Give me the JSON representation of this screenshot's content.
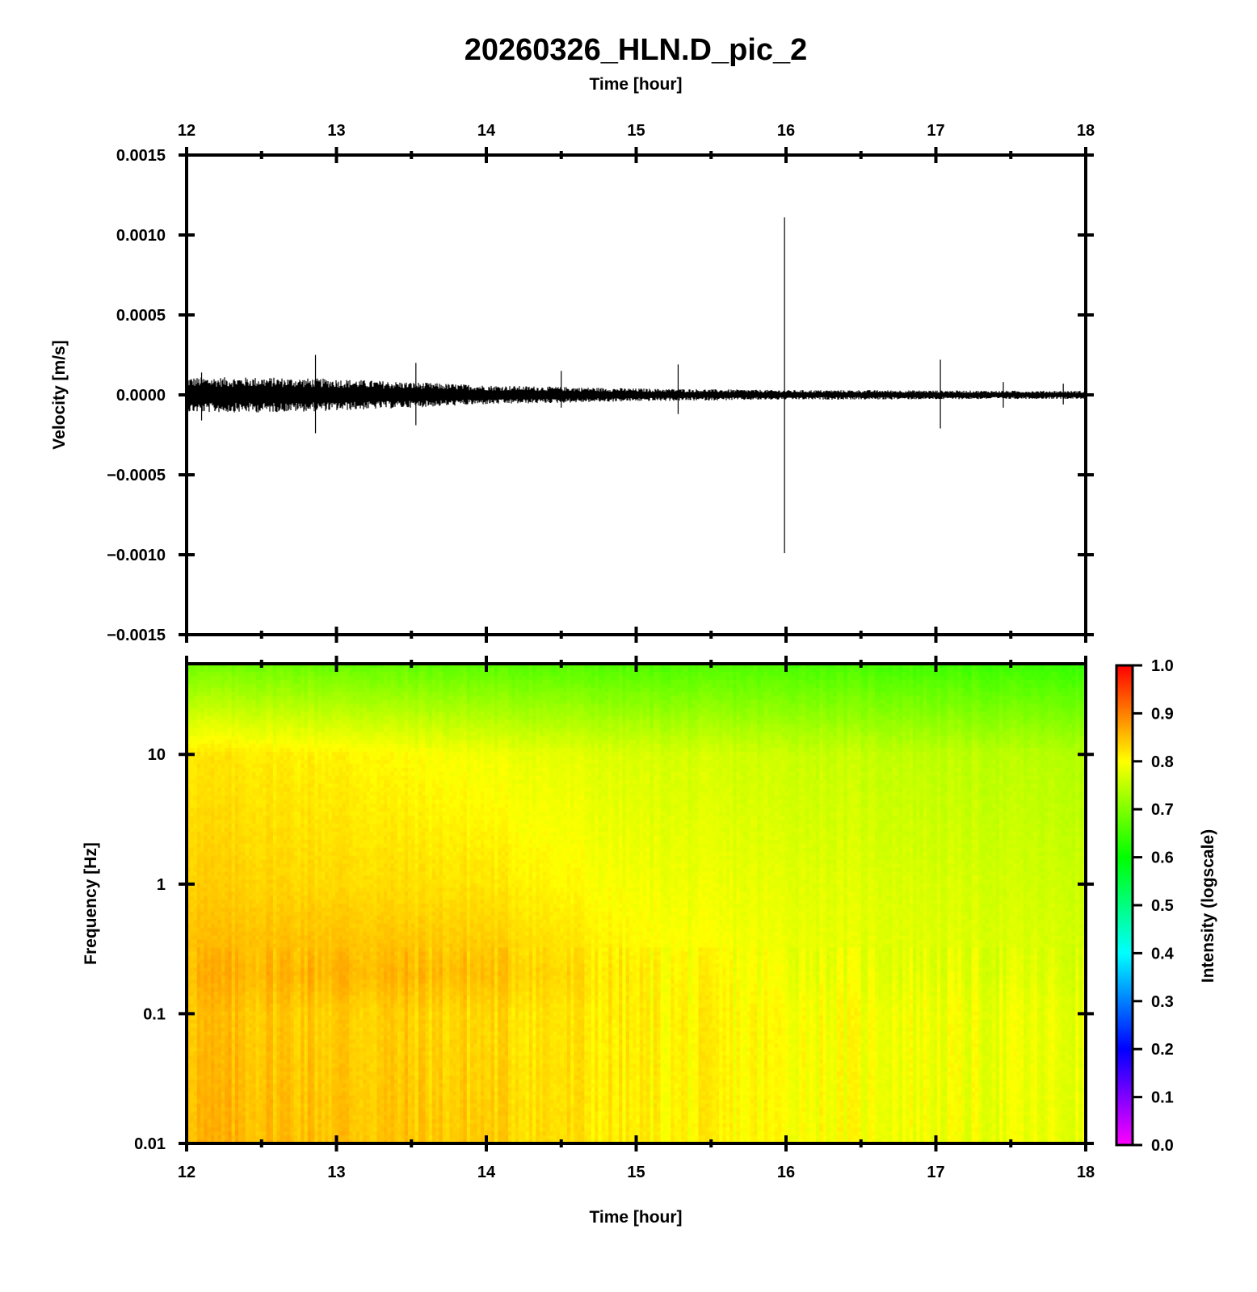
{
  "title": "20260326_HLN.D_pic_2",
  "chart_data": [
    {
      "type": "line",
      "title": "20260326_HLN.D_pic_2",
      "xlabel": "Time [hour]",
      "ylabel": "Velocity [m/s]",
      "xlim": [
        12,
        18
      ],
      "ylim": [
        -0.0015,
        0.0015
      ],
      "xticks": [
        "12",
        "13",
        "14",
        "15",
        "16",
        "17",
        "18"
      ],
      "yticks": [
        "0.0015",
        "0.0010",
        "0.0005",
        "0.0000",
        "−0.0005",
        "−0.0010",
        "−0.0015"
      ],
      "xtick_values": [
        12,
        13,
        14,
        15,
        16,
        17,
        18
      ],
      "ytick_values": [
        0.0015,
        0.001,
        0.0005,
        0,
        -0.0005,
        -0.001,
        -0.0015
      ],
      "grid": false,
      "line_color": "#000000",
      "noise_envelope": {
        "x": [
          12.0,
          12.5,
          13.0,
          13.5,
          14.0,
          14.5,
          15.0,
          15.5,
          16.0,
          16.5,
          17.0,
          17.5,
          18.0
        ],
        "amplitude": [
          0.00011,
          0.00011,
          0.0001,
          8e-05,
          6e-05,
          5e-05,
          4e-05,
          3.5e-05,
          3e-05,
          3e-05,
          2.8e-05,
          2.6e-05,
          2.5e-05
        ]
      },
      "spikes": [
        {
          "x": 12.1,
          "ymax": 0.00014,
          "ymin": -0.00016
        },
        {
          "x": 12.86,
          "ymax": 0.00025,
          "ymin": -0.00024
        },
        {
          "x": 13.53,
          "ymax": 0.0002,
          "ymin": -0.00019
        },
        {
          "x": 14.5,
          "ymax": 0.00015,
          "ymin": -8e-05
        },
        {
          "x": 15.28,
          "ymax": 0.00019,
          "ymin": -0.00012
        },
        {
          "x": 15.99,
          "ymax": 0.00111,
          "ymin": -0.00099
        },
        {
          "x": 17.03,
          "ymax": 0.00022,
          "ymin": -0.00021
        },
        {
          "x": 17.45,
          "ymax": 8e-05,
          "ymin": -8e-05
        },
        {
          "x": 17.85,
          "ymax": 7e-05,
          "ymin": -6e-05
        }
      ]
    },
    {
      "type": "heatmap",
      "xlabel": "Time [hour]",
      "ylabel": "Frequency [Hz]",
      "xlim": [
        12,
        18
      ],
      "ylim": [
        0.01,
        50
      ],
      "yscale": "log",
      "xticks": [
        "12",
        "13",
        "14",
        "15",
        "16",
        "17",
        "18"
      ],
      "yticks": [
        "10",
        "1",
        "0.1",
        "0.01"
      ],
      "xtick_values": [
        12,
        13,
        14,
        15,
        16,
        17,
        18
      ],
      "ytick_values": [
        10,
        1,
        0.1,
        0.01
      ],
      "colorbar": {
        "label": "Intensity (logscale)",
        "range": [
          0,
          1
        ],
        "ticks": [
          "1.0",
          "0.9",
          "0.8",
          "0.7",
          "0.6",
          "0.5",
          "0.4",
          "0.3",
          "0.2",
          "0.1",
          "0.0"
        ],
        "tick_values": [
          1.0,
          0.9,
          0.8,
          0.7,
          0.6,
          0.5,
          0.4,
          0.3,
          0.2,
          0.1,
          0.0
        ],
        "colormap": [
          "#ff00ff",
          "#0000ff",
          "#00ffff",
          "#00ff00",
          "#ffff00",
          "#ff0000"
        ]
      },
      "intensity_grid": {
        "time": [
          12,
          13,
          14,
          15,
          16,
          17,
          18
        ],
        "frequency": [
          0.01,
          0.1,
          0.2,
          1,
          10,
          50
        ],
        "values": [
          [
            0.86,
            0.85,
            0.86,
            0.84,
            0.82,
            0.69
          ],
          [
            0.85,
            0.84,
            0.86,
            0.83,
            0.81,
            0.68
          ],
          [
            0.84,
            0.83,
            0.85,
            0.82,
            0.79,
            0.67
          ],
          [
            0.81,
            0.81,
            0.81,
            0.79,
            0.77,
            0.66
          ],
          [
            0.8,
            0.8,
            0.79,
            0.78,
            0.76,
            0.66
          ],
          [
            0.79,
            0.79,
            0.78,
            0.77,
            0.75,
            0.65
          ],
          [
            0.78,
            0.78,
            0.77,
            0.76,
            0.74,
            0.64
          ]
        ]
      }
    }
  ]
}
